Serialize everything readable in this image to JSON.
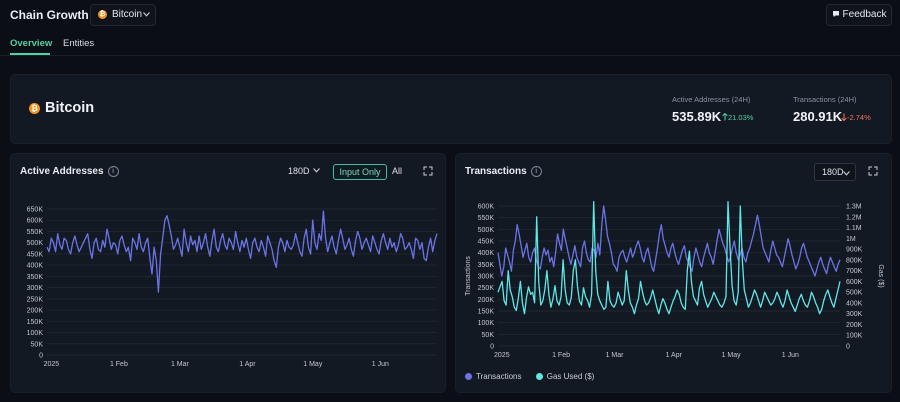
{
  "header": {
    "title": "Chain Growth",
    "coin_selector": {
      "selected": "Bitcoin",
      "coin_symbol": "₿"
    },
    "feedback_label": "Feedback"
  },
  "tabs": [
    {
      "label": "Overview",
      "active": true
    },
    {
      "label": "Entities",
      "active": false
    }
  ],
  "summary": {
    "coin_name": "Bitcoin",
    "stats": [
      {
        "label": "Active Addresses (24H)",
        "value": "535.89K",
        "delta": "21.03%",
        "direction": "up"
      },
      {
        "label": "Transactions (24H)",
        "value": "280.91K",
        "delta": "-2.74%",
        "direction": "down"
      }
    ]
  },
  "panels": {
    "active": {
      "title": "Active Addresses",
      "range": "180D",
      "toggle_active": "Input Only",
      "toggle_other": "All"
    },
    "tx": {
      "title": "Transactions",
      "range": "180D",
      "y_left_label": "Transactions",
      "y_right_label": "Gas ($)",
      "legend": [
        {
          "name": "Transactions",
          "color": "#6c73e6"
        },
        {
          "name": "Gas Used ($)",
          "color": "#5fe6e6"
        }
      ]
    }
  },
  "chart_data": [
    {
      "type": "line",
      "title": "Active Addresses",
      "x_ticks": [
        "2025",
        "1 Feb",
        "1 Mar",
        "1 Apr",
        "1 May",
        "1 Jun"
      ],
      "y_ticks": [
        "0",
        "50K",
        "100K",
        "150K",
        "200K",
        "250K",
        "300K",
        "350K",
        "400K",
        "450K",
        "500K",
        "550K",
        "600K",
        "650K"
      ],
      "ylim": [
        0,
        650000
      ],
      "x_range": [
        "2024-12-30",
        "2025-06-27"
      ],
      "grid": true,
      "color": "#6c73e6",
      "series": [
        {
          "values": [
            480000,
            460000,
            520000,
            500000,
            460000,
            540000,
            490000,
            470000,
            520000,
            510000,
            470000,
            450000,
            500000,
            530000,
            490000,
            460000,
            480000,
            500000,
            520000,
            540000,
            470000,
            430000,
            500000,
            520000,
            470000,
            460000,
            510000,
            480000,
            560000,
            520000,
            470000,
            500000,
            490000,
            450000,
            510000,
            530000,
            490000,
            460000,
            480000,
            420000,
            520000,
            500000,
            470000,
            540000,
            480000,
            460000,
            500000,
            520000,
            430000,
            360000,
            480000,
            420000,
            280000,
            450000,
            520000,
            600000,
            620000,
            580000,
            530000,
            470000,
            490000,
            520000,
            480000,
            440000,
            560000,
            500000,
            460000,
            530000,
            490000,
            510000,
            460000,
            530000,
            470000,
            500000,
            540000,
            480000,
            440000,
            510000,
            560000,
            480000,
            460000,
            510000,
            540000,
            490000,
            470000,
            520000,
            500000,
            470000,
            550000,
            500000,
            460000,
            510000,
            480000,
            520000,
            470000,
            430000,
            500000,
            520000,
            480000,
            460000,
            510000,
            480000,
            440000,
            530000,
            500000,
            470000,
            420000,
            390000,
            480000,
            520000,
            500000,
            460000,
            510000,
            480000,
            470000,
            490000,
            540000,
            500000,
            460000,
            440000,
            520000,
            560000,
            480000,
            450000,
            600000,
            500000,
            470000,
            540000,
            510000,
            640000,
            520000,
            460000,
            500000,
            530000,
            480000,
            450000,
            510000,
            560000,
            520000,
            470000,
            490000,
            520000,
            470000,
            440000,
            510000,
            550000,
            520000,
            470000,
            500000,
            520000,
            490000,
            460000,
            530000,
            500000,
            470000,
            450000,
            510000,
            540000,
            500000,
            470000,
            520000,
            480000,
            500000,
            460000,
            490000,
            540000,
            520000,
            470000,
            480000,
            500000,
            470000,
            430000,
            520000,
            510000,
            470000,
            500000,
            430000,
            420000,
            480000,
            520000,
            460000,
            510000,
            540000
          ]
        }
      ]
    },
    {
      "type": "line",
      "title": "Transactions",
      "x_ticks": [
        "2025",
        "1 Feb",
        "1 Mar",
        "1 Apr",
        "1 May",
        "1 Jun"
      ],
      "y_left_ticks": [
        "0",
        "50K",
        "100K",
        "150K",
        "200K",
        "250K",
        "300K",
        "350K",
        "400K",
        "450K",
        "500K",
        "550K",
        "600K"
      ],
      "y_right_ticks": [
        "0",
        "100K",
        "200K",
        "300K",
        "400K",
        "500K",
        "600K",
        "700K",
        "800K",
        "900K",
        "1M",
        "1.1M",
        "1.2M",
        "1.3M"
      ],
      "ylim_left": [
        0,
        600000
      ],
      "ylim_right": [
        0,
        1300000
      ],
      "x_range": [
        "2024-12-30",
        "2025-06-27"
      ],
      "grid": true,
      "series": [
        {
          "name": "Transactions",
          "axis": "left",
          "color": "#6c73e6",
          "values": [
            400000,
            350000,
            300000,
            340000,
            420000,
            390000,
            360000,
            320000,
            410000,
            450000,
            520000,
            480000,
            430000,
            380000,
            410000,
            440000,
            380000,
            360000,
            400000,
            420000,
            370000,
            340000,
            330000,
            380000,
            420000,
            390000,
            410000,
            360000,
            380000,
            340000,
            400000,
            480000,
            440000,
            410000,
            500000,
            460000,
            420000,
            380000,
            350000,
            390000,
            430000,
            380000,
            360000,
            340000,
            420000,
            450000,
            400000,
            370000,
            360000,
            420000,
            410000,
            380000,
            440000,
            390000,
            520000,
            600000,
            540000,
            470000,
            440000,
            400000,
            350000,
            340000,
            320000,
            380000,
            400000,
            410000,
            380000,
            360000,
            390000,
            420000,
            380000,
            400000,
            430000,
            450000,
            420000,
            380000,
            360000,
            400000,
            420000,
            380000,
            340000,
            320000,
            370000,
            420000,
            480000,
            520000,
            460000,
            430000,
            400000,
            380000,
            420000,
            440000,
            400000,
            370000,
            350000,
            380000,
            410000,
            430000,
            380000,
            360000,
            340000,
            320000,
            380000,
            420000,
            390000,
            360000,
            340000,
            380000,
            410000,
            440000,
            400000,
            380000,
            350000,
            400000,
            450000,
            500000,
            470000,
            440000,
            420000,
            390000,
            360000,
            380000,
            420000,
            450000,
            400000,
            370000,
            390000,
            420000,
            380000,
            360000,
            400000,
            420000,
            450000,
            480000,
            520000,
            560000,
            520000,
            470000,
            420000,
            400000,
            380000,
            360000,
            410000,
            450000,
            420000,
            390000,
            380000,
            360000,
            340000,
            380000,
            420000,
            460000,
            430000,
            390000,
            360000,
            330000,
            350000,
            380000,
            420000,
            440000,
            410000,
            380000,
            360000,
            340000,
            320000,
            300000,
            330000,
            360000,
            380000,
            350000,
            330000,
            310000,
            350000,
            380000,
            360000,
            340000,
            320000,
            350000,
            370000
          ]
        },
        {
          "name": "Gas Used ($)",
          "axis": "right",
          "color": "#5fe6e6",
          "values": [
            500000,
            550000,
            600000,
            420000,
            380000,
            700000,
            520000,
            460000,
            360000,
            330000,
            450000,
            600000,
            400000,
            300000,
            450000,
            550000,
            480000,
            500000,
            400000,
            1200000,
            600000,
            380000,
            420000,
            520000,
            700000,
            480000,
            360000,
            440000,
            560000,
            420000,
            380000,
            460000,
            800000,
            520000,
            400000,
            380000,
            450000,
            700000,
            800000,
            560000,
            420000,
            380000,
            540000,
            460000,
            420000,
            360000,
            480000,
            1340000,
            700000,
            480000,
            420000,
            380000,
            340000,
            360000,
            600000,
            420000,
            380000,
            360000,
            400000,
            500000,
            440000,
            380000,
            420000,
            700000,
            520000,
            400000,
            360000,
            300000,
            380000,
            440000,
            600000,
            500000,
            420000,
            380000,
            400000,
            450000,
            520000,
            440000,
            360000,
            300000,
            380000,
            440000,
            400000,
            340000,
            300000,
            360000,
            420000,
            460000,
            520000,
            480000,
            400000,
            360000,
            340000,
            700000,
            880000,
            600000,
            460000,
            420000,
            380000,
            540000,
            600000,
            480000,
            420000,
            360000,
            400000,
            440000,
            500000,
            460000,
            420000,
            380000,
            360000,
            400000,
            460000,
            1340000,
            900000,
            560000,
            420000,
            380000,
            500000,
            1300000,
            800000,
            520000,
            440000,
            360000,
            400000,
            460000,
            520000,
            480000,
            420000,
            360000,
            420000,
            500000,
            460000,
            420000,
            380000,
            400000,
            440000,
            500000,
            460000,
            400000,
            360000,
            420000,
            520000,
            460000,
            400000,
            360000,
            320000,
            380000,
            440000,
            480000,
            420000,
            380000,
            360000,
            420000,
            500000,
            460000,
            400000,
            360000,
            300000,
            340000,
            420000,
            480000,
            520000,
            460000,
            400000,
            360000,
            440000,
            520000,
            600000
          ]
        }
      ]
    }
  ]
}
